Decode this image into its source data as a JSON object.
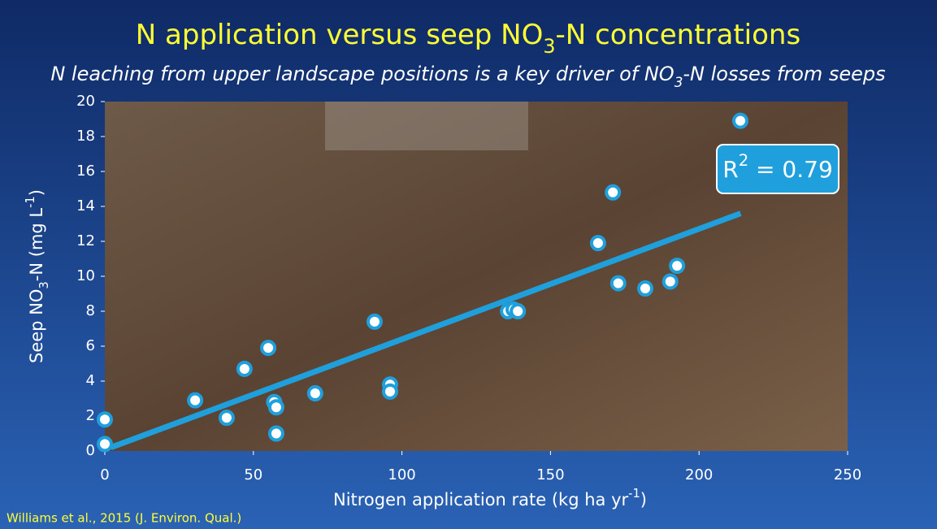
{
  "chart_data": {
    "type": "scatter",
    "title": [
      "N application versus seep NO",
      "3",
      "-N concentrations"
    ],
    "subtitle": [
      "N leaching from upper landscape positions is a key driver of NO",
      "3",
      "-N losses from seeps"
    ],
    "x_label": [
      "Nitrogen application rate (kg ha yr",
      "-1",
      ")"
    ],
    "y_label": [
      "Seep NO",
      "3",
      "-N (mg L",
      "-1",
      ")"
    ],
    "annotation": [
      "R",
      "2",
      " = 0.79"
    ],
    "source": "Williams et al., 2015 (J. Environ. Qual.)",
    "xlim": [
      0,
      250
    ],
    "xticks": [
      0,
      50,
      100,
      150,
      200,
      250
    ],
    "ylim": [
      0,
      20
    ],
    "yticks": [
      0,
      2,
      4,
      6,
      8,
      10,
      12,
      14,
      16,
      18,
      20
    ],
    "x": [
      0,
      0,
      30.4,
      41,
      47,
      55,
      57,
      57.7,
      57.7,
      70.8,
      90.8,
      96,
      96,
      135.7,
      137.6,
      139,
      166,
      171,
      172.8,
      181.9,
      190.3,
      192.6,
      213.9
    ],
    "values": [
      1.8,
      0.4,
      2.9,
      1.9,
      4.7,
      5.9,
      2.8,
      2.5,
      1.0,
      3.3,
      7.4,
      3.8,
      3.4,
      8.0,
      8.1,
      8.0,
      11.9,
      14.8,
      9.6,
      9.3,
      9.7,
      10.6,
      18.9
    ],
    "color": "#1fa0dc",
    "trendline": {
      "x": [
        2,
        214
      ],
      "values": [
        0.2,
        13.6
      ],
      "color": "#1fa0dc"
    }
  }
}
